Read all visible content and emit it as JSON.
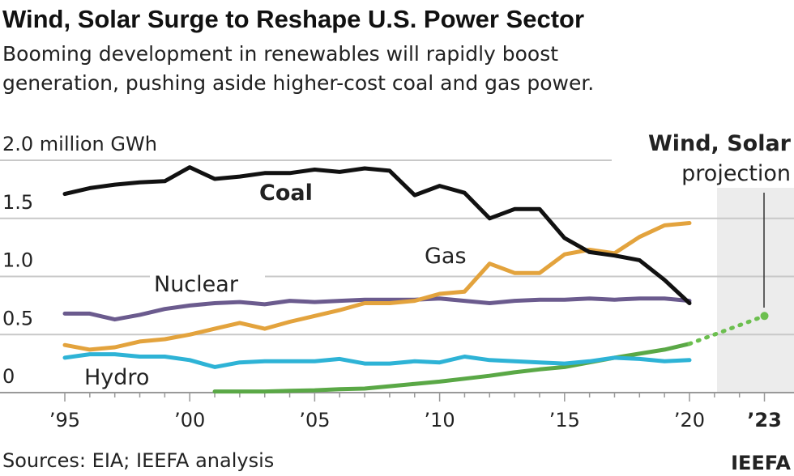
{
  "title": "Wind, Solar Surge to Reshape U.S. Power Sector",
  "subtitle_lines": [
    "Booming development in renewables will rapidly boost",
    "generation, pushing aside higher-cost coal and gas power."
  ],
  "source": "Sources: EIA; IEEFA analysis",
  "credit": "IEEFA",
  "chart_data": {
    "type": "line",
    "ylabel": "million GWh",
    "ylim": [
      0,
      2.0
    ],
    "yticks": [
      {
        "value": 0,
        "label": "0"
      },
      {
        "value": 0.5,
        "label": "0.5"
      },
      {
        "value": 1.0,
        "label": "1.0"
      },
      {
        "value": 1.5,
        "label": "1.5"
      },
      {
        "value": 2.0,
        "label": "2.0 million GWh"
      }
    ],
    "xlim": [
      1995,
      2023
    ],
    "xticks": [
      {
        "value": 1995,
        "label": "’95"
      },
      {
        "value": 2000,
        "label": "’00"
      },
      {
        "value": 2005,
        "label": "’05"
      },
      {
        "value": 2010,
        "label": "’10"
      },
      {
        "value": 2015,
        "label": "’15"
      },
      {
        "value": 2020,
        "label": "’20"
      },
      {
        "value": 2023,
        "label": "’23"
      }
    ],
    "grid": true,
    "projection_region": {
      "from": 2021,
      "to": 2023,
      "label_bold": "Wind, Solar",
      "label": "projection"
    },
    "series": [
      {
        "name": "Coal",
        "color": "#111111",
        "x0": 1995,
        "values": [
          1.71,
          1.76,
          1.79,
          1.81,
          1.82,
          1.94,
          1.84,
          1.86,
          1.89,
          1.89,
          1.92,
          1.9,
          1.93,
          1.91,
          1.7,
          1.78,
          1.72,
          1.5,
          1.58,
          1.58,
          1.33,
          1.21,
          1.18,
          1.14,
          0.97,
          0.77
        ]
      },
      {
        "name": "Gas",
        "color": "#e3a33d",
        "x0": 1995,
        "values": [
          0.41,
          0.37,
          0.39,
          0.44,
          0.46,
          0.5,
          0.55,
          0.6,
          0.55,
          0.61,
          0.66,
          0.71,
          0.77,
          0.77,
          0.79,
          0.85,
          0.87,
          1.11,
          1.03,
          1.03,
          1.19,
          1.23,
          1.2,
          1.34,
          1.44,
          1.46
        ]
      },
      {
        "name": "Nuclear",
        "color": "#6b5b8e",
        "x0": 1995,
        "values": [
          0.68,
          0.68,
          0.63,
          0.67,
          0.72,
          0.75,
          0.77,
          0.78,
          0.76,
          0.79,
          0.78,
          0.79,
          0.8,
          0.8,
          0.8,
          0.81,
          0.79,
          0.77,
          0.79,
          0.8,
          0.8,
          0.81,
          0.8,
          0.81,
          0.81,
          0.79
        ]
      },
      {
        "name": "Hydro",
        "color": "#2eb3d6",
        "x0": 1995,
        "values": [
          0.3,
          0.33,
          0.33,
          0.31,
          0.31,
          0.28,
          0.22,
          0.26,
          0.27,
          0.27,
          0.27,
          0.29,
          0.25,
          0.25,
          0.27,
          0.26,
          0.31,
          0.28,
          0.27,
          0.26,
          0.25,
          0.27,
          0.3,
          0.29,
          0.27,
          0.28
        ]
      },
      {
        "name": "Wind, Solar",
        "color": "#5aa846",
        "x0": 2001,
        "values": [
          0.01,
          0.01,
          0.01,
          0.015,
          0.02,
          0.03,
          0.035,
          0.055,
          0.075,
          0.095,
          0.12,
          0.145,
          0.175,
          0.2,
          0.22,
          0.26,
          0.3,
          0.335,
          0.37,
          0.42
        ]
      },
      {
        "name": "Wind, Solar projection",
        "color": "#6cbf4f",
        "dashed": true,
        "x": [
          2020,
          2023
        ],
        "values": [
          0.42,
          0.66
        ]
      }
    ]
  }
}
